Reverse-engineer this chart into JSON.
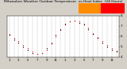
{
  "title": "Milwaukee Weather Outdoor Temperature  vs Heat Index  (24 Hours)",
  "title_fontsize": 3.2,
  "bg_color": "#d4d0c8",
  "plot_bg": "#ffffff",
  "temp_color": "#ff0000",
  "heat_color": "#000000",
  "legend_temp_color": "#ff8c00",
  "legend_heat_color": "#ff0000",
  "hours": [
    1,
    2,
    3,
    4,
    5,
    6,
    7,
    8,
    9,
    10,
    11,
    12,
    13,
    14,
    15,
    16,
    17,
    18,
    19,
    20,
    21,
    22,
    23,
    24
  ],
  "temp": [
    62,
    58,
    55,
    51,
    48,
    45,
    43,
    44,
    47,
    53,
    60,
    66,
    71,
    74,
    75,
    74,
    72,
    68,
    63,
    59,
    55,
    51,
    48,
    46
  ],
  "heat": [
    61,
    57,
    54,
    50,
    47,
    44,
    43,
    44,
    48,
    54,
    61,
    67,
    72,
    74,
    75,
    73,
    71,
    67,
    62,
    58,
    54,
    50,
    47,
    45
  ],
  "ylim": [
    40,
    80
  ],
  "yticks": [
    40,
    50,
    60,
    70,
    80
  ],
  "ytick_labels": [
    "4",
    "5",
    "6",
    "7",
    "8"
  ],
  "xtick_positions": [
    1,
    3,
    5,
    7,
    9,
    11,
    13,
    15,
    17,
    19,
    21,
    23
  ],
  "xtick_labels": [
    "1",
    "3",
    "5",
    "7",
    "9",
    "11",
    "1",
    "3",
    "5",
    "7",
    "9",
    "11"
  ],
  "grid_color": "#888888",
  "ylabel_fontsize": 3.0,
  "xlabel_fontsize": 2.8
}
